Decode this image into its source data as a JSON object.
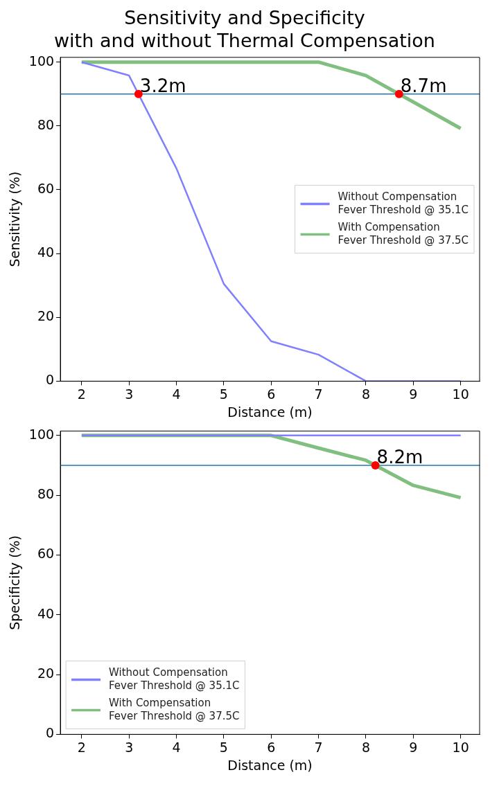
{
  "chart_data": [
    {
      "type": "line",
      "title": "Sensitivity and Specificity\nwith and without Thermal Compensation",
      "xlabel": "Distance (m)",
      "ylabel": "Sensitivity (%)",
      "x": [
        2,
        3,
        4,
        5,
        6,
        7,
        8,
        9,
        10
      ],
      "series": [
        {
          "name": "Without Compensation\nFever Threshold @ 35.1C",
          "color": "#8080ff",
          "values": [
            100,
            95.8,
            66.7,
            30.5,
            12.5,
            8.3,
            0,
            0,
            0
          ]
        },
        {
          "name": "With Compensation\nFever Threshold @ 37.5C",
          "color": "#80bf80",
          "values": [
            100,
            100,
            100,
            100,
            100,
            100,
            95.8,
            87.5,
            79.2
          ]
        },
        {
          "type": "scatter",
          "color": "#ff0000",
          "marker": "circle",
          "x": [
            3.2,
            8.7
          ],
          "values": [
            90,
            90
          ]
        }
      ],
      "annotations": [
        {
          "text": "3.2m",
          "x": 3.2,
          "y": 90
        },
        {
          "text": "8.7m",
          "x": 8.7,
          "y": 90
        }
      ],
      "ref_lines": [
        {
          "axis": "y",
          "value": 90,
          "color": "#1f77b4"
        }
      ],
      "xlim": [
        1.55,
        10.4
      ],
      "xticks": [
        2,
        3,
        4,
        5,
        6,
        7,
        8,
        9,
        10
      ],
      "ylim": [
        0,
        101.5
      ],
      "yticks": [
        0,
        20,
        40,
        60,
        80,
        100
      ],
      "marker": "none",
      "grid": false,
      "legend": "center right"
    },
    {
      "type": "line",
      "xlabel": "Distance (m)",
      "ylabel": "Specificity (%)",
      "x": [
        2,
        3,
        4,
        5,
        6,
        7,
        8,
        9,
        10
      ],
      "series": [
        {
          "name": "Without Compensation\nFever Threshold @ 35.1C",
          "color": "#8080ff",
          "values": [
            100,
            100,
            100,
            100,
            100,
            100,
            100,
            100,
            100
          ]
        },
        {
          "name": "With Compensation\nFever Threshold @ 37.5C",
          "color": "#80bf80",
          "values": [
            100,
            100,
            100,
            100,
            100,
            95.8,
            91.7,
            83.3,
            79.2
          ]
        },
        {
          "type": "scatter",
          "color": "#ff0000",
          "marker": "circle",
          "x": [
            8.2
          ],
          "values": [
            90
          ]
        }
      ],
      "annotations": [
        {
          "text": "8.2m",
          "x": 8.2,
          "y": 90
        }
      ],
      "ref_lines": [
        {
          "axis": "y",
          "value": 90,
          "color": "#1f77b4"
        }
      ],
      "xlim": [
        1.55,
        10.4
      ],
      "xticks": [
        2,
        3,
        4,
        5,
        6,
        7,
        8,
        9,
        10
      ],
      "ylim": [
        0,
        101.5
      ],
      "yticks": [
        0,
        20,
        40,
        60,
        80,
        100
      ],
      "marker": "none",
      "grid": false,
      "legend": "bottom left"
    }
  ]
}
